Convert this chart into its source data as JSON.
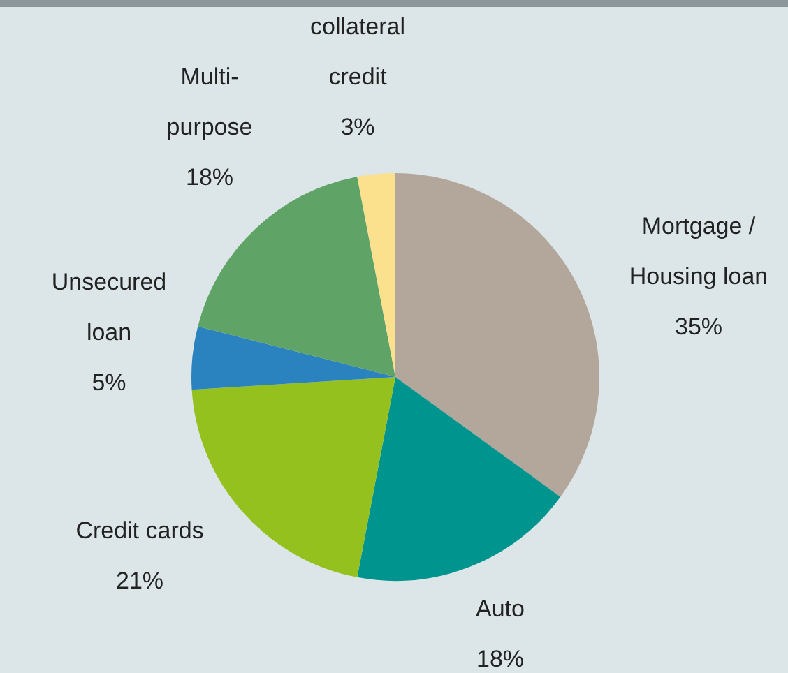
{
  "chart_data": {
    "type": "pie",
    "categories": [
      "Mortgage / Housing loan",
      "Auto",
      "Credit cards",
      "Unsecured loan",
      "Multi-purpose",
      "collateral credit"
    ],
    "values": [
      35,
      18,
      21,
      5,
      18,
      3
    ],
    "value_labels": [
      "35%",
      "18%",
      "21%",
      "5%",
      "18%",
      "3%"
    ],
    "colors": [
      "#b3a69a",
      "#00948f",
      "#95c11f",
      "#2a82bf",
      "#5fa466",
      "#fbe08e"
    ],
    "legend": false
  }
}
